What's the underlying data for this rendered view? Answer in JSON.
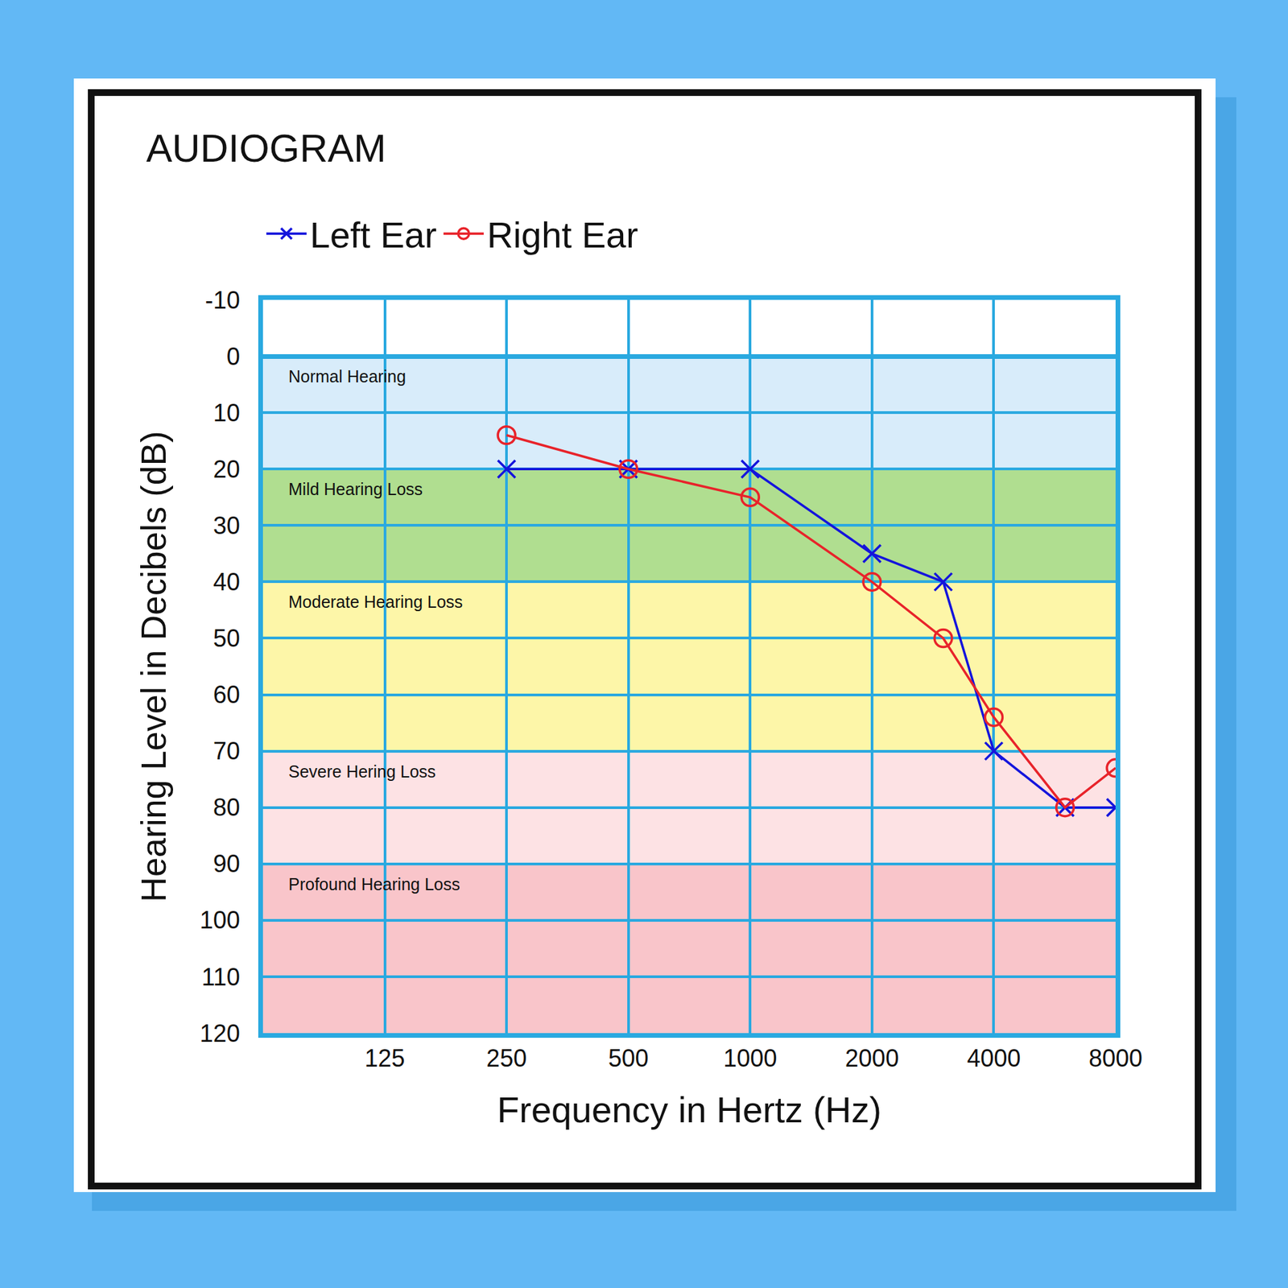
{
  "chart_data": {
    "type": "line",
    "title": "AUDIOGRAM",
    "x_label": "Frequency in Hertz (Hz)",
    "y_label": "Hearing Level in Decibels (dB)",
    "log": "x",
    "grid": true,
    "legend": "top",
    "xlim": [
      62.5,
      8000
    ],
    "xticks": [
      125,
      250,
      500,
      1000,
      2000,
      4000,
      8000
    ],
    "ylim": [
      120,
      -10
    ],
    "yticks": [
      -10,
      0,
      10,
      20,
      30,
      40,
      50,
      60,
      70,
      80,
      90,
      100,
      110,
      120
    ],
    "x": [
      250,
      500,
      1000,
      2000,
      3000,
      4000,
      6000,
      8000
    ],
    "series": [
      {
        "name": "Left Ear",
        "color": "#1414dc",
        "marker": "x-thin",
        "values": [
          20,
          20,
          20,
          35,
          40,
          70,
          80,
          80
        ]
      },
      {
        "name": "Right Ear",
        "color": "#e8232a",
        "marker": "circle-open",
        "values": [
          14,
          20,
          25,
          40,
          50,
          64,
          80,
          73
        ]
      }
    ],
    "bands": [
      {
        "label": "Normal Hearing",
        "from": 0,
        "to": 20,
        "color": "#d8ecfa"
      },
      {
        "label": "Mild Hearing Loss",
        "from": 20,
        "to": 40,
        "color": "#b0de90"
      },
      {
        "label": "Moderate Hearing Loss",
        "from": 40,
        "to": 70,
        "color": "#fdf6a8"
      },
      {
        "label": "Severe Hering Loss",
        "from": 70,
        "to": 90,
        "color": "#fde2e4"
      },
      {
        "label": "Profound Hearing Loss",
        "from": 90,
        "to": 120,
        "color": "#f9c5ca"
      }
    ]
  }
}
